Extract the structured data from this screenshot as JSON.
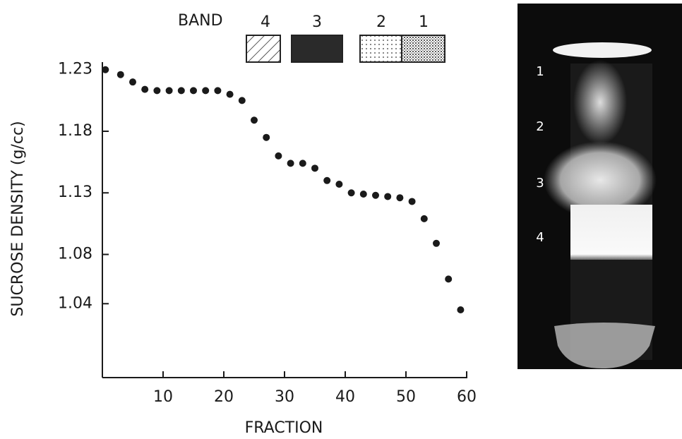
{
  "chart_data": {
    "type": "scatter",
    "x_label": "FRACTION",
    "y_label": "SUCROSE DENSITY (g/cc)",
    "x": [
      0.5,
      3,
      5,
      7,
      9,
      11,
      13,
      15,
      17,
      19,
      21,
      23,
      25,
      27,
      29,
      31,
      33,
      35,
      37,
      39,
      41,
      43,
      45,
      47,
      49,
      51,
      53,
      55,
      57,
      59
    ],
    "values": [
      1.23,
      1.226,
      1.22,
      1.214,
      1.213,
      1.213,
      1.213,
      1.213,
      1.213,
      1.213,
      1.21,
      1.205,
      1.189,
      1.175,
      1.16,
      1.154,
      1.154,
      1.15,
      1.14,
      1.137,
      1.13,
      1.129,
      1.128,
      1.127,
      1.126,
      1.123,
      1.109,
      1.089,
      1.06,
      1.035
    ],
    "color": "#1a1a1a",
    "xlim": [
      0,
      60
    ],
    "xticks": [
      10,
      20,
      30,
      40,
      50,
      60
    ],
    "ylim": [
      0.98,
      1.235
    ],
    "yticks": [
      1.23,
      1.18,
      1.13,
      1.08,
      1.04
    ],
    "legend": {
      "title": "BAND",
      "items": [
        "4",
        "3",
        "2",
        "1"
      ]
    }
  },
  "photo": {
    "labels": [
      "1",
      "2",
      "3",
      "4"
    ]
  }
}
